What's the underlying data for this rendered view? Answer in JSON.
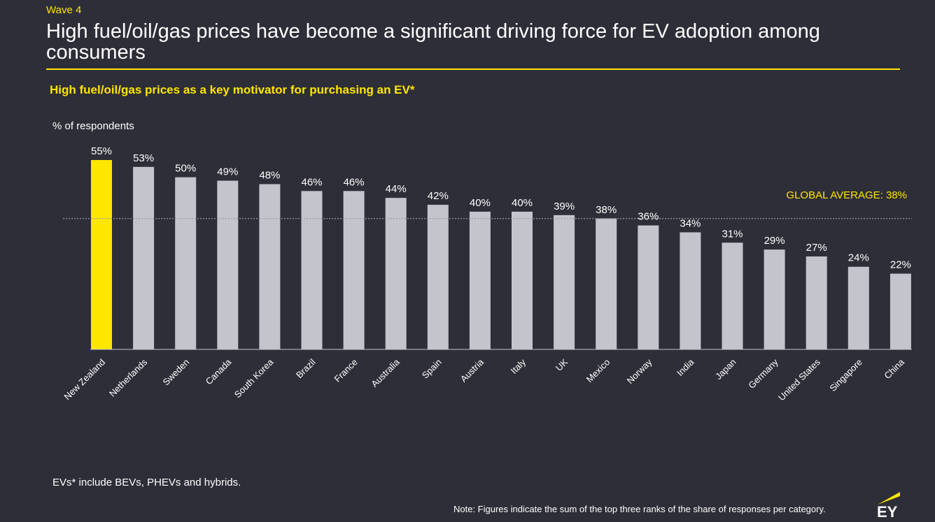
{
  "header": {
    "wave": "Wave 4",
    "title": "High fuel/oil/gas prices have become a significant driving force for EV adoption among consumers",
    "subtitle": "High fuel/oil/gas prices as a key motivator for purchasing an EV*"
  },
  "chart_data": {
    "type": "bar",
    "title": "High fuel/oil/gas prices as a key motivator for purchasing an EV*",
    "ylabel": "% of respondents",
    "xlabel": "",
    "categories": [
      "New Zealand",
      "Netherlands",
      "Sweden",
      "Canada",
      "South Korea",
      "Brazil",
      "France",
      "Australia",
      "Spain",
      "Austria",
      "Italy",
      "UK",
      "Mexico",
      "Norway",
      "India",
      "Japan",
      "Germany",
      "United States",
      "Singapore",
      "China"
    ],
    "values": [
      55,
      53,
      50,
      49,
      48,
      46,
      46,
      44,
      42,
      40,
      40,
      39,
      38,
      36,
      34,
      31,
      29,
      27,
      24,
      22
    ],
    "data_labels": [
      "55%",
      "53%",
      "50%",
      "49%",
      "48%",
      "46%",
      "46%",
      "44%",
      "42%",
      "40%",
      "40%",
      "39%",
      "38%",
      "36%",
      "34%",
      "31%",
      "29%",
      "27%",
      "24%",
      "22%"
    ],
    "ylim": [
      0,
      55
    ],
    "grid": false,
    "highlight_category": "New Zealand",
    "reference_line": {
      "value": 38,
      "label": "GLOBAL AVERAGE: 38%"
    },
    "colors": {
      "highlight": "#ffe600",
      "bar": "#c4c4cd",
      "reference": "#9a9aa3",
      "axis": "#c4c4cd"
    }
  },
  "footer": {
    "footnote": "EVs* include BEVs, PHEVs and hybrids.",
    "note": "Note: Figures indicate the sum of the top three ranks of the share of responses per category.",
    "logo_text": "EY"
  }
}
